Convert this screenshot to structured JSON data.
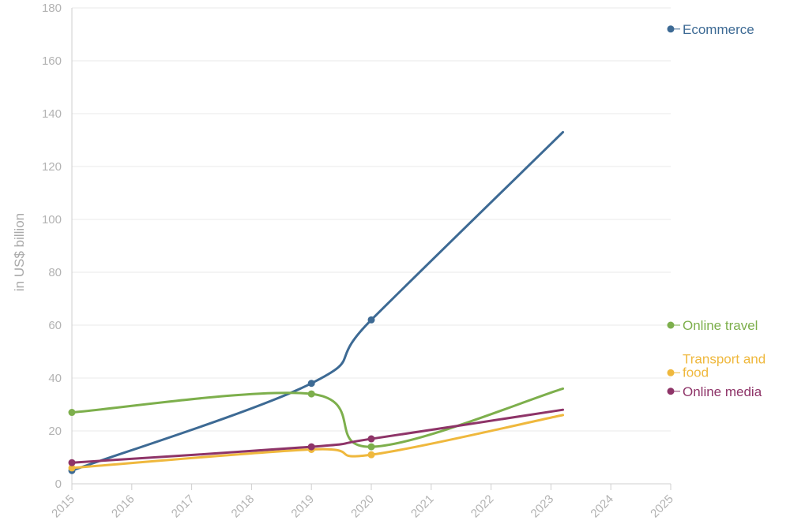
{
  "chart_data": {
    "type": "line",
    "title": "",
    "xlabel": "",
    "ylabel": "in US$ billion",
    "xlim": [
      2015,
      2025
    ],
    "ylim": [
      0,
      180
    ],
    "x_ticks": [
      "2015",
      "2016",
      "2017",
      "2018",
      "2019",
      "2020",
      "2021",
      "2022",
      "2023",
      "2024",
      "2025"
    ],
    "y_ticks": [
      0,
      20,
      40,
      60,
      80,
      100,
      120,
      140,
      160,
      180
    ],
    "grid": true,
    "legend_placement": "right",
    "series": [
      {
        "name": "Ecommerce",
        "color": "#3d6a94",
        "points": [
          [
            2015,
            5
          ],
          [
            2019,
            38
          ],
          [
            2020,
            62
          ],
          [
            2023.2,
            133
          ]
        ],
        "markers": [
          [
            2015,
            5
          ],
          [
            2019,
            38
          ],
          [
            2020,
            62
          ]
        ],
        "legend_value": 172
      },
      {
        "name": "Online travel",
        "color": "#7daf4c",
        "points": [
          [
            2015,
            27
          ],
          [
            2019,
            34
          ],
          [
            2020,
            14
          ],
          [
            2023.2,
            36
          ]
        ],
        "markers": [
          [
            2015,
            27
          ],
          [
            2019,
            34
          ],
          [
            2020,
            14
          ]
        ],
        "legend_value": 60
      },
      {
        "name": "Transport and food",
        "label_lines": [
          "Transport and",
          "food"
        ],
        "color": "#efb83d",
        "points": [
          [
            2015,
            6
          ],
          [
            2019,
            13
          ],
          [
            2020,
            11
          ],
          [
            2023.2,
            26
          ]
        ],
        "markers": [
          [
            2015,
            6
          ],
          [
            2019,
            13
          ],
          [
            2020,
            11
          ]
        ],
        "legend_value": 42
      },
      {
        "name": "Online media",
        "color": "#8e3468",
        "points": [
          [
            2015,
            8
          ],
          [
            2019,
            14
          ],
          [
            2020,
            17
          ],
          [
            2023.2,
            28
          ]
        ],
        "markers": [
          [
            2015,
            8
          ],
          [
            2019,
            14
          ],
          [
            2020,
            17
          ]
        ],
        "legend_value": 35
      }
    ]
  }
}
